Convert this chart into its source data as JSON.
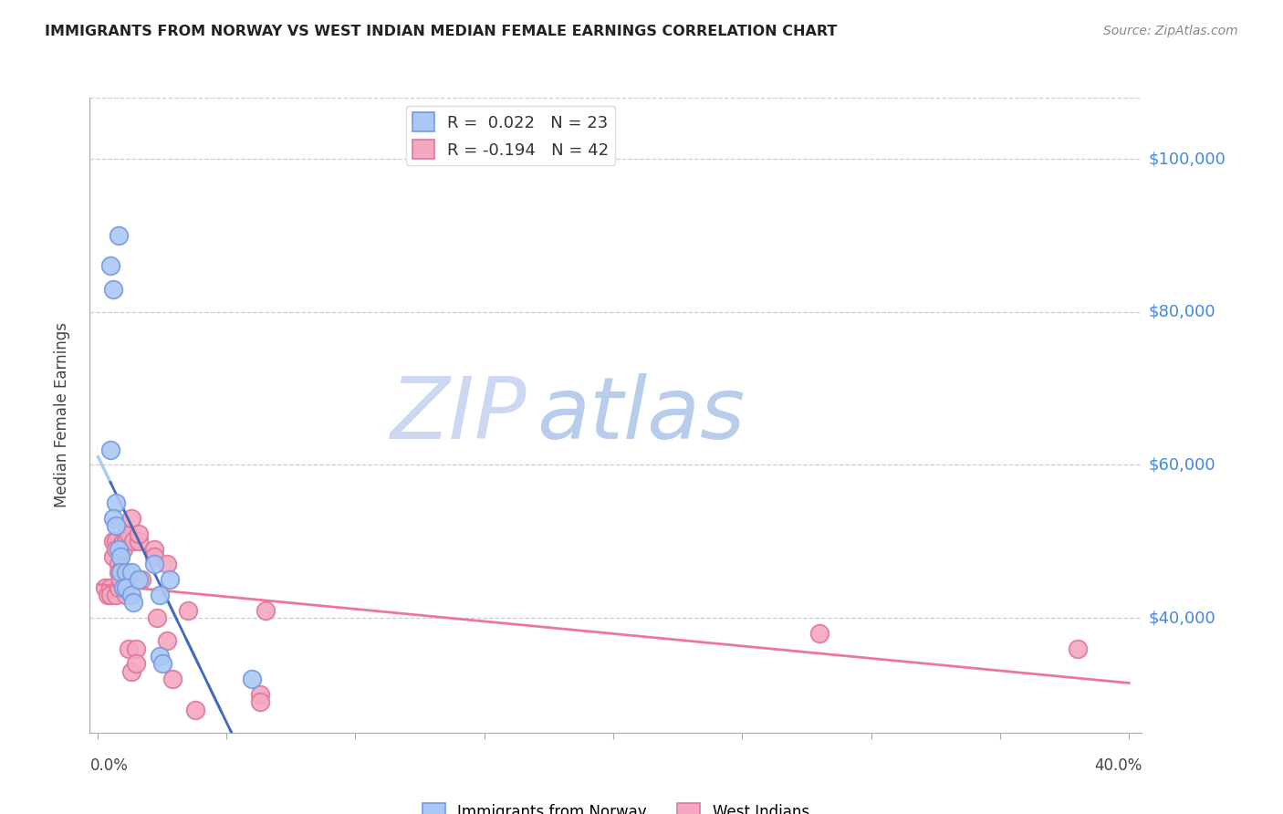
{
  "title": "IMMIGRANTS FROM NORWAY VS WEST INDIAN MEDIAN FEMALE EARNINGS CORRELATION CHART",
  "source": "Source: ZipAtlas.com",
  "ylabel": "Median Female Earnings",
  "y_ticks": [
    40000,
    60000,
    80000,
    100000
  ],
  "y_tick_labels": [
    "$40,000",
    "$60,000",
    "$80,000",
    "$100,000"
  ],
  "xlim": [
    -0.003,
    0.405
  ],
  "ylim": [
    25000,
    108000
  ],
  "norway_color": "#aac8f5",
  "norway_edge": "#7799dd",
  "west_color": "#f5a8c0",
  "west_edge": "#dd7799",
  "trendline_norway_solid": "#4466bb",
  "trendline_west_solid": "#ee7799",
  "trendline_norway_dashed": "#aaccee",
  "norway_x": [
    0.005,
    0.006,
    0.008,
    0.005,
    0.007,
    0.006,
    0.007,
    0.008,
    0.009,
    0.009,
    0.011,
    0.013,
    0.01,
    0.011,
    0.013,
    0.014,
    0.016,
    0.022,
    0.024,
    0.024,
    0.025,
    0.028,
    0.06
  ],
  "norway_y": [
    86000,
    83000,
    90000,
    62000,
    55000,
    53000,
    52000,
    49000,
    48000,
    46000,
    46000,
    46000,
    44000,
    44000,
    43000,
    42000,
    45000,
    47000,
    43000,
    35000,
    34000,
    45000,
    32000
  ],
  "west_x": [
    0.003,
    0.004,
    0.005,
    0.005,
    0.006,
    0.006,
    0.007,
    0.007,
    0.007,
    0.008,
    0.008,
    0.008,
    0.009,
    0.009,
    0.01,
    0.01,
    0.011,
    0.011,
    0.011,
    0.012,
    0.012,
    0.013,
    0.013,
    0.014,
    0.015,
    0.015,
    0.016,
    0.016,
    0.017,
    0.022,
    0.022,
    0.023,
    0.027,
    0.027,
    0.029,
    0.035,
    0.038,
    0.063,
    0.063,
    0.065,
    0.28,
    0.38
  ],
  "west_y": [
    44000,
    43000,
    44000,
    43000,
    50000,
    48000,
    50000,
    49000,
    43000,
    47000,
    46000,
    44000,
    46000,
    45000,
    50000,
    49000,
    51000,
    50000,
    43000,
    51000,
    36000,
    53000,
    33000,
    50000,
    36000,
    34000,
    50000,
    51000,
    45000,
    49000,
    48000,
    40000,
    47000,
    37000,
    32000,
    41000,
    28000,
    30000,
    29000,
    41000,
    38000,
    36000
  ]
}
